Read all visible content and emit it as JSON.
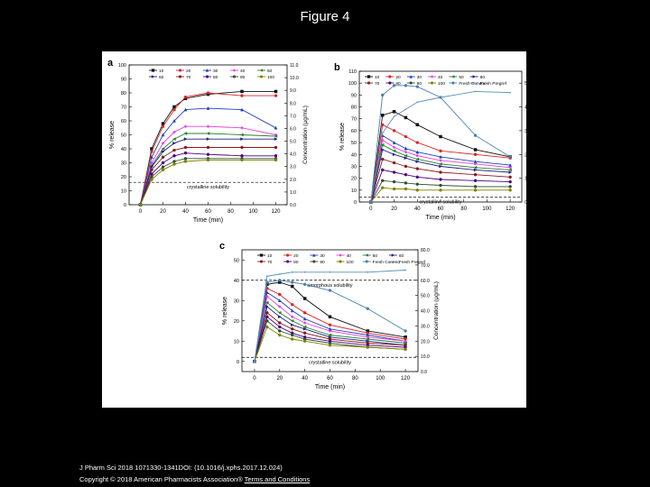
{
  "page": {
    "title": "Figure 4"
  },
  "footer": {
    "citation": "J Pharm Sci 2018 1071330-1341DOI: (10.1016/j.xphs.2017.12.024)",
    "copyright": "Copyright © 2018 American Pharmacists Association®",
    "terms_link": "Terms and Conditions"
  },
  "chart_data": [
    {
      "panel": "a",
      "type": "line",
      "xlabel": "Time (min)",
      "ylabel": "% release",
      "y2label": "Concentration (µg/mL)",
      "xlim": [
        -10,
        130
      ],
      "ylim": [
        0,
        100
      ],
      "y2lim": [
        0,
        11
      ],
      "xticks": [
        0,
        20,
        40,
        60,
        80,
        100,
        120
      ],
      "yticks": [
        0,
        10,
        20,
        30,
        40,
        50,
        60,
        70,
        80,
        90,
        100
      ],
      "y2ticks": [
        "0.0",
        "1.0",
        "2.0",
        "3.0",
        "4.0",
        "5.0",
        "6.0",
        "7.0",
        "8.0",
        "9.0",
        "10.0",
        "11.0"
      ],
      "x": [
        0,
        10,
        20,
        30,
        40,
        60,
        90,
        120
      ],
      "series": [
        {
          "name": "10",
          "color": "#111111",
          "marker": "square",
          "values": [
            0,
            40,
            58,
            70,
            76,
            79,
            81,
            81
          ]
        },
        {
          "name": "20",
          "color": "#d62728",
          "marker": "circle",
          "values": [
            0,
            38,
            56,
            68,
            77,
            80,
            78,
            78
          ]
        },
        {
          "name": "30",
          "color": "#1f3fbf",
          "marker": "triangle",
          "values": [
            0,
            34,
            50,
            60,
            68,
            69,
            68,
            55
          ]
        },
        {
          "name": "40",
          "color": "#e040e0",
          "marker": "diamond",
          "values": [
            0,
            30,
            44,
            52,
            56,
            56,
            55,
            50
          ]
        },
        {
          "name": "50",
          "color": "#2e7d32",
          "marker": "triangle-left",
          "values": [
            0,
            28,
            40,
            47,
            51,
            51,
            50,
            49
          ]
        },
        {
          "name": "60",
          "color": "#1a237e",
          "marker": "triangle-right",
          "values": [
            0,
            27,
            38,
            44,
            47,
            47,
            47,
            47
          ]
        },
        {
          "name": "70",
          "color": "#8b1a1a",
          "marker": "hexagon",
          "values": [
            0,
            25,
            34,
            39,
            41,
            41,
            41,
            41
          ]
        },
        {
          "name": "80",
          "color": "#4b0082",
          "marker": "star",
          "values": [
            0,
            22,
            30,
            35,
            37,
            36,
            35,
            35
          ]
        },
        {
          "name": "90",
          "color": "#2f4f2f",
          "marker": "pentagon",
          "values": [
            0,
            20,
            27,
            31,
            33,
            33,
            33,
            33
          ]
        },
        {
          "name": "100",
          "color": "#808000",
          "marker": "circle",
          "values": [
            0,
            18,
            25,
            29,
            31,
            32,
            32,
            32
          ]
        }
      ],
      "reference_lines": [
        {
          "label": "crystalline solubility",
          "y": 16
        }
      ]
    },
    {
      "panel": "b",
      "type": "line",
      "xlabel": "Time (min)",
      "ylabel": "% release",
      "y2label": "Concentration (µg/mL)",
      "xlim": [
        -10,
        130
      ],
      "ylim": [
        0,
        110
      ],
      "y2lim": [
        0,
        55
      ],
      "xticks": [
        0,
        20,
        40,
        60,
        80,
        100,
        120
      ],
      "yticks": [
        0,
        10,
        20,
        30,
        40,
        50,
        60,
        70,
        80,
        90,
        100,
        110
      ],
      "y2ticks": [
        "0.0",
        "10.0",
        "20.0",
        "30.0",
        "40.0",
        "50.0"
      ],
      "x": [
        0,
        10,
        20,
        30,
        40,
        60,
        90,
        120
      ],
      "series": [
        {
          "name": "10",
          "color": "#111111",
          "marker": "square",
          "values": [
            0,
            73,
            76,
            71,
            65,
            55,
            44,
            38
          ]
        },
        {
          "name": "20",
          "color": "#d62728",
          "marker": "circle",
          "values": [
            0,
            65,
            60,
            55,
            50,
            43,
            40,
            37
          ]
        },
        {
          "name": "30",
          "color": "#1f3fbf",
          "marker": "triangle",
          "values": [
            0,
            56,
            50,
            45,
            42,
            38,
            34,
            31
          ]
        },
        {
          "name": "40",
          "color": "#e040e0",
          "marker": "diamond",
          "values": [
            0,
            52,
            46,
            42,
            39,
            35,
            32,
            29
          ]
        },
        {
          "name": "50",
          "color": "#2e7d32",
          "marker": "triangle-left",
          "values": [
            0,
            48,
            43,
            39,
            36,
            32,
            29,
            27
          ]
        },
        {
          "name": "60",
          "color": "#1a237e",
          "marker": "triangle-right",
          "values": [
            0,
            44,
            40,
            37,
            34,
            30,
            27,
            25
          ]
        },
        {
          "name": "70",
          "color": "#8b1a1a",
          "marker": "hexagon",
          "values": [
            0,
            36,
            33,
            30,
            28,
            25,
            23,
            21
          ]
        },
        {
          "name": "80",
          "color": "#4b0082",
          "marker": "star",
          "values": [
            0,
            27,
            25,
            23,
            21,
            19,
            18,
            17
          ]
        },
        {
          "name": "90",
          "color": "#2f4f2f",
          "marker": "pentagon",
          "values": [
            0,
            18,
            17,
            16,
            15,
            14,
            13,
            13
          ]
        },
        {
          "name": "100",
          "color": "#808000",
          "marker": "circle",
          "values": [
            0,
            12,
            11,
            11,
            10,
            10,
            10,
            10
          ]
        },
        {
          "name": "Fresh Conenc",
          "color": "#4a7fb0",
          "marker": "circle",
          "values": [
            0,
            90,
            98,
            98,
            97,
            88,
            56,
            38
          ]
        },
        {
          "name": "Fresh Pregref",
          "color": "#5a8fb8",
          "marker": "none",
          "values": [
            0,
            58,
            72,
            78,
            84,
            88,
            93,
            92
          ]
        }
      ],
      "reference_lines": [
        {
          "label": "crystalline solubility",
          "y": 4
        }
      ]
    },
    {
      "panel": "c",
      "type": "line",
      "xlabel": "Time (min)",
      "ylabel": "% release",
      "y2label": "Concentration (µg/mL)",
      "xlim": [
        -10,
        130
      ],
      "ylim": [
        -5,
        55
      ],
      "y2lim": [
        0,
        80
      ],
      "xticks": [
        0,
        20,
        40,
        60,
        80,
        100,
        120
      ],
      "yticks": [
        0,
        10,
        20,
        30,
        40,
        50
      ],
      "y2ticks": [
        "0.0",
        "10.0",
        "20.0",
        "30.0",
        "40.0",
        "50.0",
        "60.0",
        "70.0",
        "80.0"
      ],
      "x": [
        0,
        10,
        20,
        30,
        40,
        60,
        90,
        120
      ],
      "series": [
        {
          "name": "10",
          "color": "#111111",
          "marker": "square",
          "values": [
            0,
            38,
            39,
            37,
            31,
            22,
            15,
            12
          ]
        },
        {
          "name": "20",
          "color": "#d62728",
          "marker": "circle",
          "values": [
            0,
            36,
            33,
            28,
            24,
            18,
            14,
            11
          ]
        },
        {
          "name": "30",
          "color": "#1f3fbf",
          "marker": "triangle",
          "values": [
            0,
            34,
            30,
            25,
            21,
            16,
            13,
            10
          ]
        },
        {
          "name": "40",
          "color": "#e040e0",
          "marker": "diamond",
          "values": [
            0,
            32,
            27,
            22,
            19,
            15,
            12,
            10
          ]
        },
        {
          "name": "50",
          "color": "#2e7d32",
          "marker": "triangle-left",
          "values": [
            0,
            29,
            24,
            20,
            17,
            13,
            11,
            9
          ]
        },
        {
          "name": "60",
          "color": "#1a237e",
          "marker": "triangle-right",
          "values": [
            0,
            27,
            22,
            18,
            16,
            12,
            10,
            8
          ]
        },
        {
          "name": "70",
          "color": "#8b1a1a",
          "marker": "hexagon",
          "values": [
            0,
            24,
            19,
            16,
            14,
            11,
            9,
            8
          ]
        },
        {
          "name": "80",
          "color": "#4b0082",
          "marker": "star",
          "values": [
            0,
            22,
            17,
            14,
            12,
            10,
            8,
            7
          ]
        },
        {
          "name": "90",
          "color": "#2f4f2f",
          "marker": "pentagon",
          "values": [
            0,
            20,
            15,
            13,
            11,
            9,
            7,
            6
          ]
        },
        {
          "name": "100",
          "color": "#808000",
          "marker": "circle",
          "values": [
            0,
            17,
            13,
            11,
            10,
            8,
            7,
            6
          ]
        },
        {
          "name": "Fresh Conenc",
          "color": "#4a7fb0",
          "marker": "circle",
          "values": [
            0,
            39,
            40,
            39,
            38,
            35,
            26,
            15
          ]
        },
        {
          "name": "Fresh Pregref",
          "color": "#5a8fb8",
          "marker": "none",
          "values": [
            0,
            42,
            43,
            44,
            44,
            44,
            44,
            45
          ]
        }
      ],
      "reference_lines": [
        {
          "label": "amorphous solubility",
          "y": 40
        },
        {
          "label": "crystalline solubility",
          "y": 2
        }
      ]
    }
  ]
}
